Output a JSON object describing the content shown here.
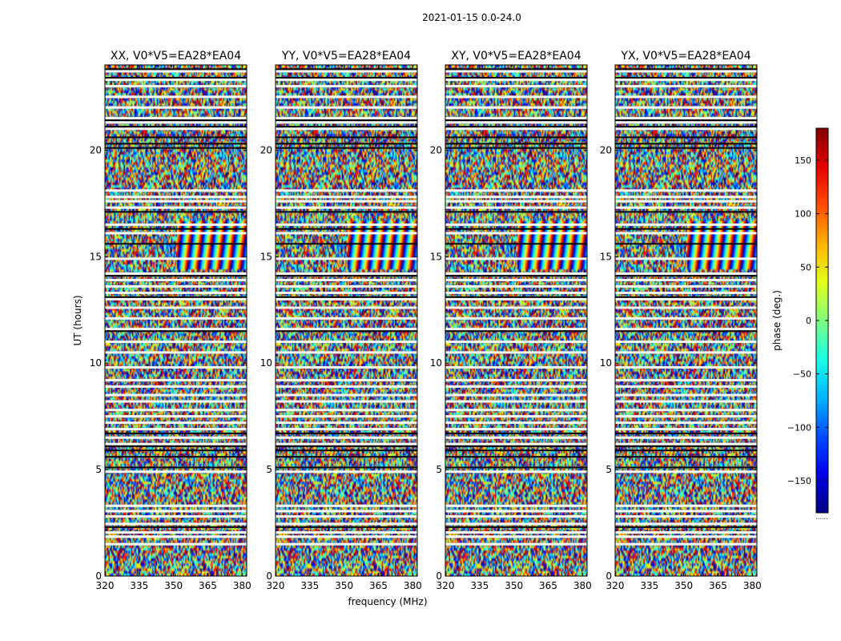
{
  "figure_title": "2021-01-15 0.0-24.0",
  "chart_data": {
    "type": "heatmap",
    "title": "2021-01-15 0.0-24.0",
    "xlabel": "frequency (MHz)",
    "ylabel": "UT (hours)",
    "xlim": [
      320,
      382
    ],
    "ylim": [
      0,
      24
    ],
    "xticks": [
      320,
      335,
      350,
      365,
      380
    ],
    "yticks": [
      0,
      5,
      10,
      15,
      20
    ],
    "panels": [
      {
        "title": "XX, V0*V5=EA28*EA04",
        "polarization": "XX"
      },
      {
        "title": "YY, V0*V5=EA28*EA04",
        "polarization": "YY"
      },
      {
        "title": "XY, V0*V5=EA28*EA04",
        "polarization": "XY"
      },
      {
        "title": "YX, V0*V5=EA28*EA04",
        "polarization": "YX"
      }
    ],
    "colorbar": {
      "label": "phase (deg.)",
      "range": [
        -180,
        180
      ],
      "ticks": [
        -150,
        -100,
        -50,
        0,
        50,
        100,
        150
      ],
      "colormap": "jet"
    },
    "flagged_rows_ut": [
      1.5,
      1.85,
      2.05,
      2.45,
      2.8,
      3.05,
      3.3,
      4.9,
      6.2,
      6.5,
      6.9,
      7.2,
      7.5,
      7.8,
      8.2,
      8.5,
      8.9,
      9.2,
      9.8,
      10.5,
      11.0,
      11.6,
      12.1,
      12.6,
      13.0,
      13.3,
      13.6,
      13.9,
      14.2,
      14.9,
      16.1,
      16.5,
      17.3,
      17.6,
      17.8,
      18.1,
      21.0,
      21.3,
      21.5,
      22.0,
      22.5,
      23.0,
      23.3,
      23.7
    ],
    "dark_rows_ut": [
      2.3,
      5.1,
      5.6,
      5.9,
      6.1,
      6.7,
      11.5,
      13.1,
      14.1,
      15.6,
      16.3,
      17.1,
      20.1,
      20.3,
      20.6,
      21.1,
      21.4,
      23.4,
      23.8
    ]
  },
  "icons": {
    "colorbar_dots": "colorbar-extension-dots"
  }
}
